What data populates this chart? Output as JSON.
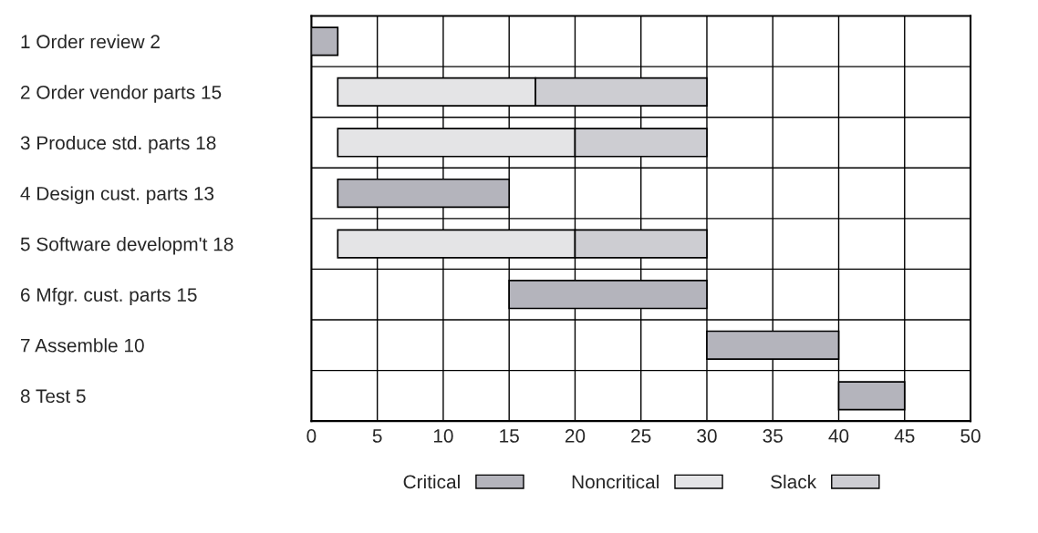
{
  "chart_data": {
    "type": "bar",
    "orientation": "horizontal",
    "categories": [
      "1 Order review 2",
      "2 Order vendor parts 15",
      "3 Produce std. parts 18",
      "4 Design cust. parts 13",
      "5 Software developm't 18",
      "6 Mfgr. cust. parts 15",
      "7 Assemble 10",
      "8 Test 5"
    ],
    "series": [
      {
        "name": "Critical",
        "color": "#b4b4bc",
        "base": [
          0,
          null,
          null,
          2,
          null,
          15,
          30,
          40
        ],
        "values": [
          2,
          null,
          null,
          13,
          null,
          15,
          10,
          5
        ]
      },
      {
        "name": "Noncritical",
        "color": "#e4e4e6",
        "base": [
          null,
          2,
          2,
          null,
          2,
          null,
          null,
          null
        ],
        "values": [
          null,
          15,
          18,
          null,
          18,
          null,
          null,
          null
        ]
      },
      {
        "name": "Slack",
        "color": "#cdcdd2",
        "base": [
          null,
          17,
          20,
          null,
          20,
          null,
          null,
          null
        ],
        "values": [
          null,
          13,
          10,
          null,
          10,
          null,
          null,
          null
        ]
      }
    ],
    "xlim": [
      0,
      50
    ],
    "xticks": [
      0,
      5,
      10,
      15,
      20,
      25,
      30,
      35,
      40,
      45,
      50
    ],
    "grid": true,
    "legend": "bottom"
  }
}
